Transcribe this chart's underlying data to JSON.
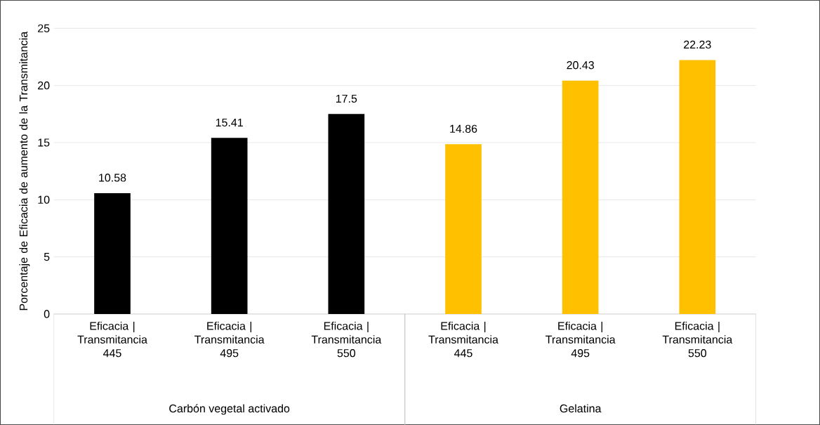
{
  "chart_data": {
    "type": "bar",
    "categories": [
      "Eficacia | Transmitancia 445",
      "Eficacia | Transmitancia 495",
      "Eficacia | Transmitancia 550",
      "Eficacia | Transmitancia 445",
      "Eficacia | Transmitancia 495",
      "Eficacia | Transmitancia 550"
    ],
    "values": [
      10.58,
      15.41,
      17.5,
      14.86,
      20.43,
      22.23
    ],
    "colors": [
      "#000000",
      "#000000",
      "#000000",
      "#ffc000",
      "#ffc000",
      "#ffc000"
    ],
    "annotations": [
      "Carbón vegetal activado",
      "Gelatina"
    ],
    "ylabel": "Porcentaje de Eficacia de aumento de la Transmitancia",
    "ylim": [
      0,
      25
    ],
    "yticks": [
      0,
      5,
      10,
      15,
      20,
      25
    ],
    "grid": "y",
    "data_labels": true
  }
}
